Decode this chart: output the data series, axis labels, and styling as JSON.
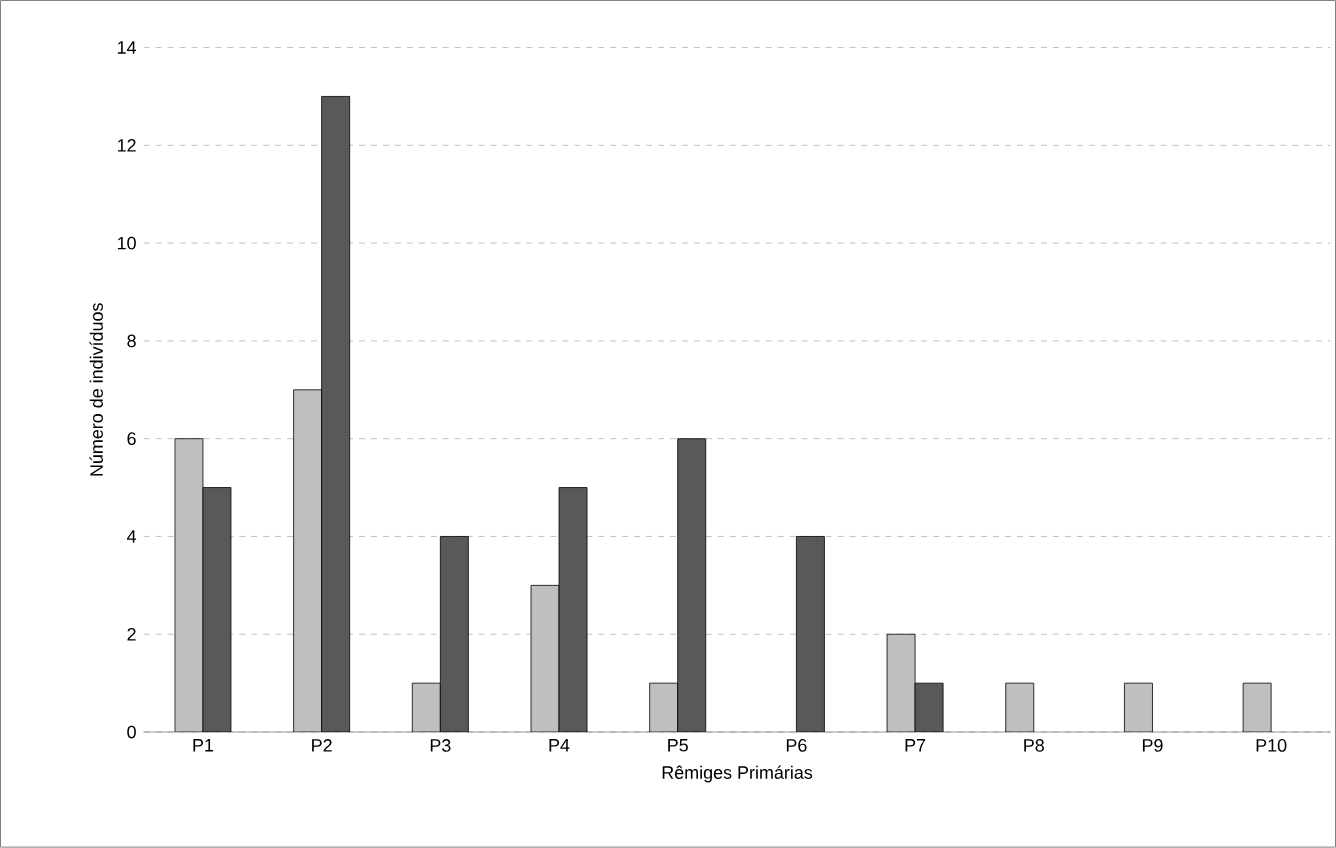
{
  "chart_data": {
    "type": "bar",
    "xlabel": "Rêmiges Primárias",
    "ylabel": "Número de indivíduos",
    "categories": [
      "P1",
      "P2",
      "P3",
      "P4",
      "P5",
      "P6",
      "P7",
      "P8",
      "P9",
      "P10"
    ],
    "series": [
      {
        "color": "#bfbfbf",
        "values": [
          6,
          7,
          1,
          3,
          1,
          null,
          2,
          1,
          1,
          1
        ]
      },
      {
        "color": "#595959",
        "values": [
          5,
          13,
          4,
          5,
          6,
          4,
          1,
          null,
          null,
          null
        ]
      }
    ],
    "ylim": [
      0,
      14
    ],
    "yticks": [
      0,
      2,
      4,
      6,
      8,
      10,
      12,
      14
    ],
    "grid": "y"
  }
}
